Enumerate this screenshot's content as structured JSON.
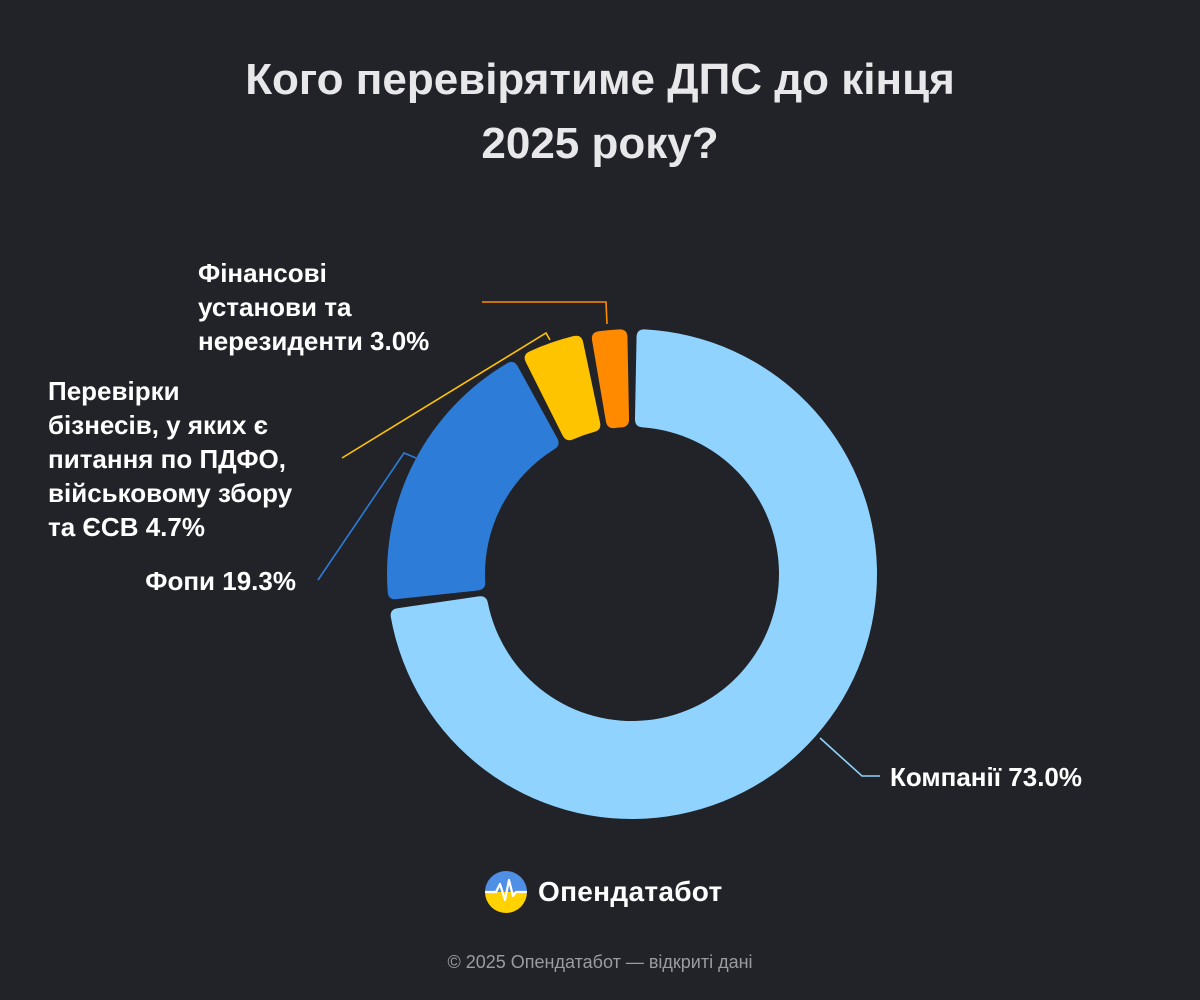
{
  "title_lines": [
    "Кого перевірятиме ДПС до кінця",
    "2025 року?"
  ],
  "chart_data": {
    "type": "pie",
    "donut": true,
    "title": "Кого перевірятиме ДПС до кінця 2025 року?",
    "slices": [
      {
        "label": "Компанії",
        "value": 73.0,
        "display": "73.0%",
        "color": "#8fd3fe",
        "label_lines": [
          "Компанії 73.0%"
        ]
      },
      {
        "label": "Фопи",
        "value": 19.3,
        "display": "19.3%",
        "color": "#2c7cd8",
        "label_lines": [
          "Фопи 19.3%"
        ]
      },
      {
        "label": "Перевірки бізнесів, у яких є питання по ПДФО, військовому збору та ЄСВ",
        "value": 4.7,
        "display": "4.7%",
        "color": "#ffc400",
        "label_lines": [
          "Перевірки",
          "бізнесів, у яких є",
          "питання по ПДФО,",
          "військовому збору",
          "та ЄСВ 4.7%"
        ]
      },
      {
        "label": "Фінансові установи та нерезиденти",
        "value": 3.0,
        "display": "3.0%",
        "color": "#ff8a00",
        "label_lines": [
          "Фінансові",
          "установи та",
          "нерезиденти 3.0%"
        ]
      }
    ]
  },
  "logo": {
    "text": "Опендатабот"
  },
  "footer": {
    "text": "© 2025 Опендатабот — відкриті дані"
  }
}
